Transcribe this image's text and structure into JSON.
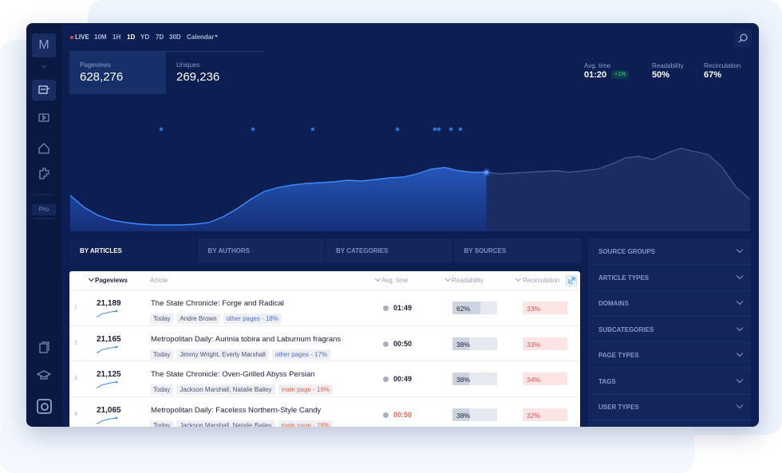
{
  "sidebar": {
    "logo": "M",
    "badge": "Pro"
  },
  "toolbar": {
    "live": "LIVE",
    "ranges": [
      "10M",
      "1H",
      "1D",
      "YD",
      "7D",
      "30D"
    ],
    "active_range": 2,
    "calendar": "Calendar"
  },
  "stats": [
    {
      "label": "Pageviews",
      "value": "628,276"
    },
    {
      "label": "Uniques",
      "value": "269,236"
    }
  ],
  "metrics": [
    {
      "label": "Avg. time",
      "value": "01:20",
      "change": "+1%"
    },
    {
      "label": "Readability",
      "value": "50%"
    },
    {
      "label": "Recirculation",
      "value": "67%"
    }
  ],
  "traffic_chart": {
    "today": [
      45,
      30,
      20,
      14,
      11,
      9,
      8,
      8,
      8,
      9,
      11,
      18,
      28,
      40,
      50,
      55,
      58,
      60,
      61,
      62,
      64,
      63,
      65,
      67,
      68,
      72,
      78,
      80,
      76,
      74,
      74,
      null,
      null,
      null,
      null,
      null,
      null,
      null,
      null,
      null,
      null,
      null,
      null,
      null,
      null,
      null,
      null,
      null,
      null,
      null
    ],
    "projected": [
      null,
      null,
      null,
      null,
      null,
      null,
      null,
      null,
      null,
      null,
      null,
      null,
      null,
      null,
      null,
      null,
      null,
      null,
      null,
      null,
      null,
      null,
      null,
      null,
      null,
      null,
      null,
      null,
      null,
      null,
      74,
      72,
      73,
      74,
      75,
      76,
      74,
      76,
      78,
      84,
      92,
      94,
      90,
      98,
      104,
      100,
      96,
      80,
      55,
      40
    ]
  },
  "tabs": [
    "BY ARTICLES",
    "BY AUTHORS",
    "BY CATEGORIES",
    "BY SOURCES"
  ],
  "active_tab": 0,
  "table": {
    "columns": [
      "Pageviews",
      "Article",
      "Avg. time",
      "Readability",
      "Recirculation"
    ],
    "rows": [
      {
        "rank": "1",
        "pageviews": "21,189",
        "title": "The State Chronicle: Forge and Radical",
        "date": "Today",
        "authors": "Andre Brown",
        "referrer": "other pages - 18%",
        "referrer_color": "#4a6fd0",
        "avg_time": "01:49",
        "avg_time_color": "#1a1f36",
        "readability": {
          "value": 62,
          "label": "62%"
        },
        "recirculation": "33%"
      },
      {
        "rank": "2",
        "pageviews": "21,165",
        "title": "Metropolitan Daily: Aurinia tobira and Laburnum fragrans",
        "date": "Today",
        "authors": "Jimmy Wright, Everly Marshall",
        "referrer": "other pages - 17%",
        "referrer_color": "#4a6fd0",
        "avg_time": "00:50",
        "avg_time_color": "#1a1f36",
        "readability": {
          "value": 38,
          "label": "38%"
        },
        "recirculation": "33%"
      },
      {
        "rank": "3",
        "pageviews": "21,125",
        "title": "The State Chronicle: Oven-Grilled Abyss Persian",
        "date": "Today",
        "authors": "Jackson Marshall, Natalie Bailey",
        "referrer": "main page - 19%",
        "referrer_color": "#e2694f",
        "avg_time": "00:49",
        "avg_time_color": "#1a1f36",
        "readability": {
          "value": 38,
          "label": "38%"
        },
        "recirculation": "34%"
      },
      {
        "rank": "4",
        "pageviews": "21,065",
        "title": "Metropolitan Daily: Faceless Northern-Style Candy",
        "date": "Today",
        "authors": "Jackson Marshall, Natalie Bailey",
        "referrer": "main page - 18%",
        "referrer_color": "#e2694f",
        "avg_time": "00:50",
        "avg_time_color": "#e2694f",
        "readability": {
          "value": 38,
          "label": "38%"
        },
        "recirculation": "32%"
      }
    ]
  },
  "filters": [
    "SOURCE GROUPS",
    "ARTICLE TYPES",
    "DOMAINS",
    "SUBCATEGORIES",
    "PAGE TYPES",
    "TAGS",
    "USER TYPES"
  ]
}
